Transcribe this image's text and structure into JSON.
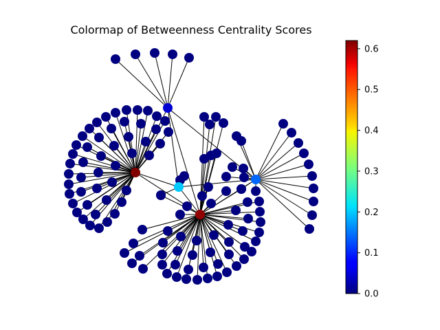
{
  "title": "Colormap of Betweenness Centrality Scores",
  "colorbar": {
    "min": 0.0,
    "max": 0.62,
    "colormap": "jet",
    "ticks": [
      "0.0",
      "0.1",
      "0.2",
      "0.3",
      "0.4",
      "0.5",
      "0.6"
    ],
    "tick_values": [
      0.0,
      0.1,
      0.2,
      0.3,
      0.4,
      0.5,
      0.6
    ]
  },
  "graph": {
    "hubs": [
      {
        "id": "hub-a",
        "score": 0.62
      },
      {
        "id": "hub-b",
        "score": 0.61
      },
      {
        "id": "hub-c",
        "score": 0.2
      },
      {
        "id": "hub-d",
        "score": 0.14
      },
      {
        "id": "hub-e",
        "score": 0.05
      }
    ],
    "leaf_score": 0.0
  }
}
